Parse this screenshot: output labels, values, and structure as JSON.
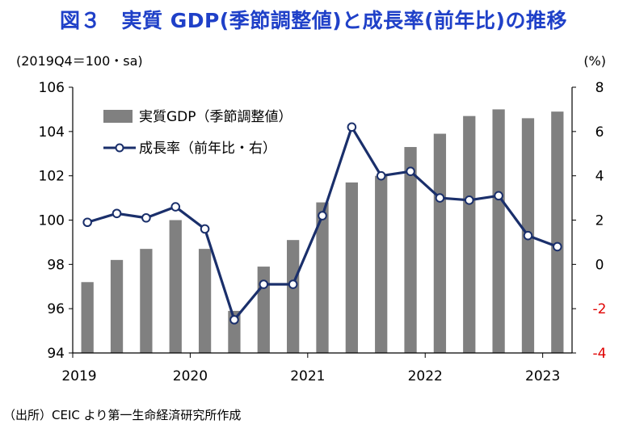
{
  "chart_data": {
    "type": "bar+line",
    "title": "図３　実質 GDP(季節調整値)と成長率(前年比)の推移",
    "left_axis_label": "(2019Q4＝100・sa)",
    "right_axis_label": "(%)",
    "x_tick_labels": [
      "2019",
      "2020",
      "2021",
      "2022",
      "2023"
    ],
    "left_ylim": [
      94,
      106
    ],
    "left_ticks": [
      "94",
      "96",
      "98",
      "100",
      "102",
      "104",
      "106"
    ],
    "right_ylim": [
      -4,
      8
    ],
    "right_ticks": [
      "-4",
      "-2",
      "0",
      "2",
      "4",
      "6",
      "8"
    ],
    "quarters": [
      "2019Q1",
      "2019Q2",
      "2019Q3",
      "2019Q4",
      "2020Q1",
      "2020Q2",
      "2020Q3",
      "2020Q4",
      "2021Q1",
      "2021Q2",
      "2021Q3",
      "2021Q4",
      "2022Q1",
      "2022Q2",
      "2022Q3",
      "2022Q4",
      "2023Q1"
    ],
    "series": [
      {
        "name": "実質GDP（季節調整値）",
        "type": "bar",
        "axis": "left",
        "color": "#808080",
        "values": [
          97.2,
          98.2,
          98.7,
          100.0,
          98.7,
          95.9,
          97.9,
          99.1,
          100.8,
          101.7,
          102.0,
          103.3,
          103.9,
          104.7,
          105.0,
          104.6,
          104.9
        ]
      },
      {
        "name": "成長率（前年比・右）",
        "type": "line",
        "axis": "right",
        "color": "#1a2f6b",
        "values": [
          1.9,
          2.3,
          2.1,
          2.6,
          1.6,
          -2.5,
          -0.9,
          -0.9,
          2.2,
          6.2,
          4.0,
          4.2,
          3.0,
          2.9,
          3.1,
          1.3,
          0.8
        ]
      }
    ],
    "legend": "top-left inside",
    "grid": false,
    "colors": {
      "title": "#1f40c8",
      "negative_tick": "#e00000",
      "axis": "#000000"
    }
  },
  "source_note": "（出所）CEIC より第一生命経済研究所作成"
}
